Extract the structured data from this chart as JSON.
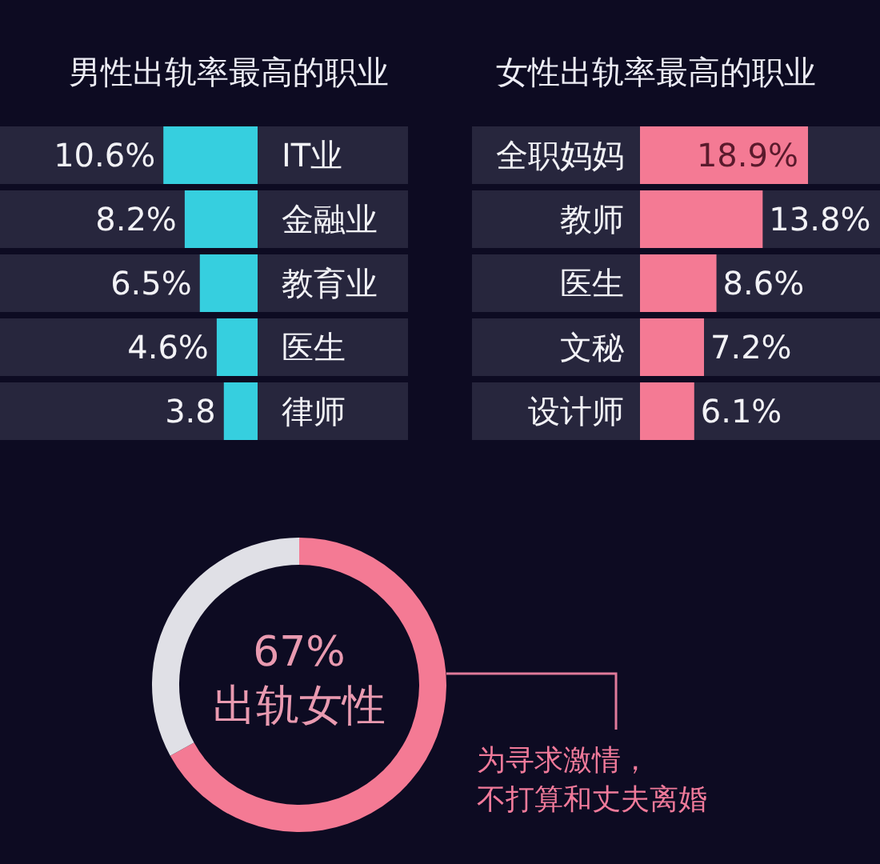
{
  "chart_data": [
    {
      "type": "bar",
      "orientation": "horizontal",
      "title": "男性出轨率最高的职业",
      "categories": [
        "IT业",
        "金融业",
        "教育业",
        "医生",
        "律师"
      ],
      "values": [
        10.6,
        8.2,
        6.5,
        4.6,
        3.8
      ],
      "color": "#36cfdf",
      "value_labels": [
        "10.6%",
        "8.2%",
        "6.5%",
        "4.6%",
        "3.8"
      ]
    },
    {
      "type": "bar",
      "orientation": "horizontal",
      "title": "女性出轨率最高的职业",
      "categories": [
        "全职妈妈",
        "教师",
        "医生",
        "文秘",
        "设计师"
      ],
      "values": [
        18.9,
        13.8,
        8.6,
        7.2,
        6.1
      ],
      "color": "#f47a94",
      "value_labels": [
        "18.9%",
        "13.8%",
        "8.6%",
        "7.2%",
        "6.1%"
      ]
    },
    {
      "type": "donut",
      "categories": [
        "出轨女性",
        null
      ],
      "values": [
        67,
        33
      ],
      "colors": [
        "#f47a94",
        "#e0e0e6"
      ],
      "value_labels": [
        "67%",
        null
      ],
      "annotations": [
        "为寻求激情，不打算和丈夫离婚"
      ]
    }
  ]
}
